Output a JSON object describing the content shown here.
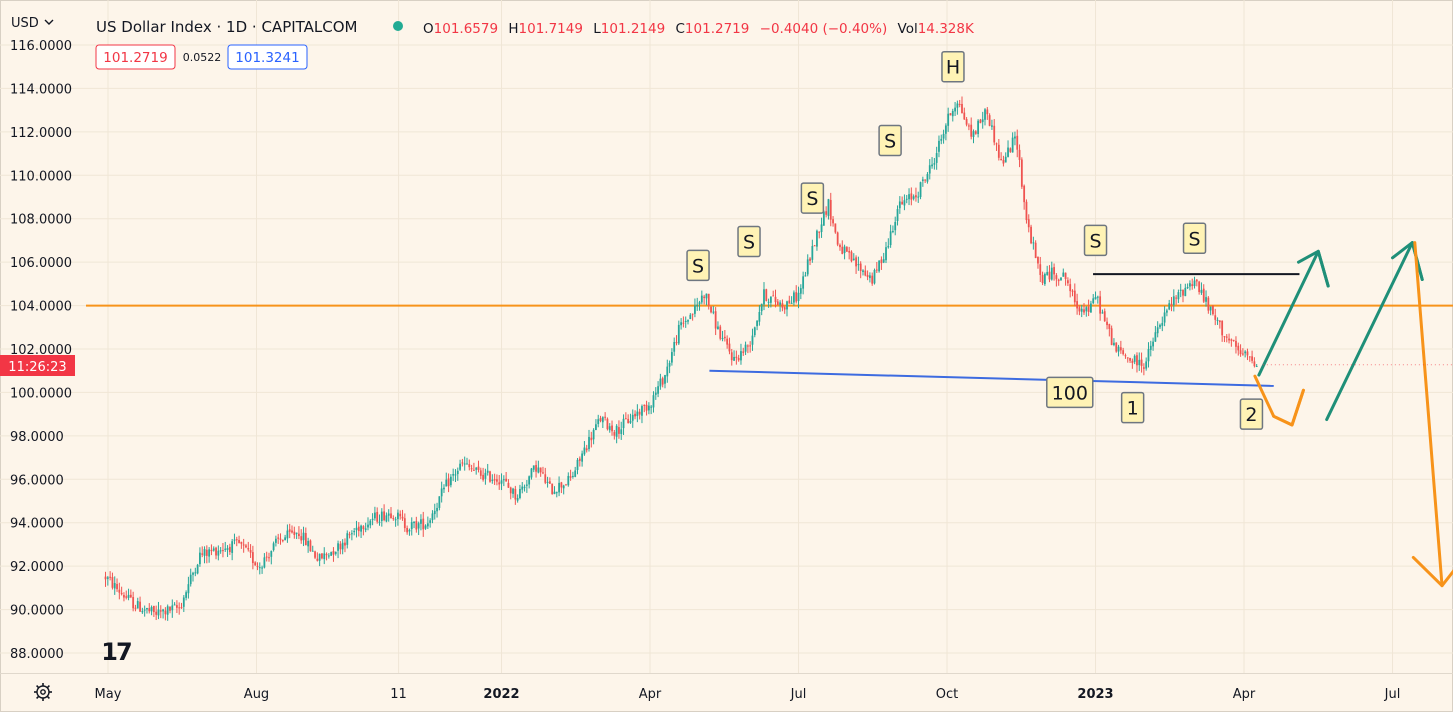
{
  "header": {
    "currency": "USD",
    "title": "US Dollar Index · 1D · CAPITALCOM",
    "o_label": "O",
    "open": "101.6579",
    "h_label": "H",
    "high": "101.7149",
    "l_label": "L",
    "low": "101.2149",
    "c_label": "C",
    "close": "101.2719",
    "change": "−0.4040 (−0.40%)",
    "vol_label": "Vol",
    "volume": "14.328K",
    "bid": "101.2719",
    "spread": "0.0522",
    "ask": "101.3241"
  },
  "price_badge": {
    "time": "11:26:23"
  },
  "logo_text": "17",
  "colors": {
    "background": "#fdf5ea",
    "up": "#26a69a",
    "down": "#ef5350",
    "resistance": "#f7931a",
    "neckline": "#3d6be0",
    "arrow_up": "#1f8f78",
    "arrow_down": "#f7931a",
    "label_fill": "#fff3b5",
    "badge": "#f23645"
  },
  "chart_data": {
    "type": "candlestick",
    "title": "US Dollar Index · 1D · CAPITALCOM",
    "xlabel": "",
    "ylabel": "USD",
    "ylim": [
      87.0,
      116.5
    ],
    "y_ticks": [
      "116.0000",
      "114.0000",
      "112.0000",
      "110.0000",
      "108.0000",
      "106.0000",
      "104.0000",
      "102.0000",
      "100.0000",
      "98.0000",
      "96.0000",
      "94.0000",
      "92.0000",
      "90.0000",
      "88.0000"
    ],
    "x_ticks": [
      {
        "label": "May",
        "t": 0.05
      },
      {
        "label": "Aug",
        "t": 3.05
      },
      {
        "label": "11",
        "t": 5.92
      },
      {
        "label": "2022",
        "t": 8.0
      },
      {
        "label": "Apr",
        "t": 11.0
      },
      {
        "label": "Jul",
        "t": 14.0
      },
      {
        "label": "Oct",
        "t": 17.0
      },
      {
        "label": "2023",
        "t": 20.0
      },
      {
        "label": "Apr",
        "t": 23.0
      },
      {
        "label": "Jul",
        "t": 26.0
      }
    ],
    "x_range_months": [
      -0.1,
      27.4
    ],
    "price_path": [
      [
        0.0,
        91.5
      ],
      [
        0.3,
        90.8
      ],
      [
        0.6,
        90.2
      ],
      [
        1.0,
        89.8
      ],
      [
        1.5,
        90.1
      ],
      [
        1.9,
        92.5
      ],
      [
        2.3,
        92.8
      ],
      [
        2.7,
        93.0
      ],
      [
        3.1,
        92.0
      ],
      [
        3.5,
        93.2
      ],
      [
        3.9,
        93.6
      ],
      [
        4.3,
        92.3
      ],
      [
        4.7,
        92.9
      ],
      [
        5.1,
        93.8
      ],
      [
        5.4,
        94.2
      ],
      [
        5.8,
        94.5
      ],
      [
        6.1,
        93.8
      ],
      [
        6.5,
        94.0
      ],
      [
        6.9,
        95.8
      ],
      [
        7.2,
        96.7
      ],
      [
        7.6,
        96.2
      ],
      [
        8.0,
        96.0
      ],
      [
        8.3,
        95.2
      ],
      [
        8.7,
        96.6
      ],
      [
        9.0,
        95.5
      ],
      [
        9.4,
        96.0
      ],
      [
        9.7,
        97.5
      ],
      [
        10.0,
        98.8
      ],
      [
        10.3,
        98.2
      ],
      [
        10.7,
        99.0
      ],
      [
        11.0,
        99.5
      ],
      [
        11.3,
        100.8
      ],
      [
        11.6,
        103.0
      ],
      [
        11.9,
        103.8
      ],
      [
        12.1,
        104.6
      ],
      [
        12.4,
        102.7
      ],
      [
        12.7,
        101.5
      ],
      [
        13.0,
        102.2
      ],
      [
        13.3,
        104.5
      ],
      [
        13.7,
        104.0
      ],
      [
        14.0,
        104.5
      ],
      [
        14.4,
        107.5
      ],
      [
        14.6,
        108.7
      ],
      [
        14.8,
        106.8
      ],
      [
        15.1,
        106.0
      ],
      [
        15.5,
        105.2
      ],
      [
        15.8,
        106.8
      ],
      [
        16.0,
        108.5
      ],
      [
        16.4,
        109.2
      ],
      [
        16.7,
        110.5
      ],
      [
        17.0,
        112.5
      ],
      [
        17.2,
        113.5
      ],
      [
        17.5,
        111.8
      ],
      [
        17.8,
        113.0
      ],
      [
        18.1,
        110.5
      ],
      [
        18.4,
        111.8
      ],
      [
        18.6,
        108.0
      ],
      [
        18.9,
        105.2
      ],
      [
        19.1,
        105.5
      ],
      [
        19.4,
        105.3
      ],
      [
        19.6,
        104.0
      ],
      [
        19.9,
        103.8
      ],
      [
        20.0,
        104.5
      ],
      [
        20.2,
        103.2
      ],
      [
        20.4,
        102.0
      ],
      [
        20.7,
        101.5
      ],
      [
        21.0,
        101.3
      ],
      [
        21.2,
        102.6
      ],
      [
        21.5,
        104.0
      ],
      [
        21.8,
        104.8
      ],
      [
        22.0,
        105.2
      ],
      [
        22.3,
        103.8
      ],
      [
        22.6,
        102.7
      ],
      [
        22.9,
        101.8
      ],
      [
        23.1,
        101.6
      ],
      [
        23.3,
        101.3
      ]
    ],
    "last_close": 101.2719,
    "horizontal_levels": [
      {
        "name": "resistance",
        "value": 104.0
      }
    ],
    "annotations": [
      {
        "text": "S",
        "t": 11.97,
        "y": 105.85
      },
      {
        "text": "S",
        "t": 13.0,
        "y": 106.95
      },
      {
        "text": "S",
        "t": 14.28,
        "y": 108.95
      },
      {
        "text": "S",
        "t": 15.85,
        "y": 111.6
      },
      {
        "text": "H",
        "t": 17.12,
        "y": 115.0
      },
      {
        "text": "S",
        "t": 20.0,
        "y": 107.0
      },
      {
        "text": "S",
        "t": 22.0,
        "y": 107.1
      },
      {
        "text": "100",
        "t": 19.48,
        "y": 100.0
      },
      {
        "text": "1",
        "t": 20.75,
        "y": 99.3
      },
      {
        "text": "2",
        "t": 23.15,
        "y": 99.0
      }
    ],
    "neckline": [
      [
        12.2,
        101.0
      ],
      [
        23.6,
        100.3
      ]
    ],
    "black_line": [
      [
        19.95,
        105.45
      ],
      [
        24.12,
        105.45
      ]
    ],
    "projection_arrows": [
      {
        "color": "up",
        "points": [
          [
            23.3,
            100.8
          ],
          [
            24.5,
            106.5
          ],
          [
            24.7,
            104.9
          ]
        ],
        "head": [
          [
            24.1,
            106.0
          ],
          [
            24.5,
            106.5
          ],
          [
            24.7,
            104.9
          ]
        ]
      },
      {
        "color": "up",
        "points": [
          [
            24.67,
            98.75
          ],
          [
            26.4,
            106.9
          ],
          [
            26.6,
            105.2
          ]
        ],
        "head": [
          [
            26.0,
            106.2
          ],
          [
            26.4,
            106.9
          ],
          [
            26.6,
            105.2
          ]
        ]
      },
      {
        "color": "down",
        "points": [
          [
            23.22,
            100.75
          ],
          [
            23.6,
            98.9
          ],
          [
            23.97,
            98.5
          ],
          [
            24.2,
            100.1
          ]
        ],
        "head": [
          [
            23.6,
            98.9
          ],
          [
            23.97,
            98.5
          ],
          [
            24.2,
            100.1
          ]
        ]
      },
      {
        "color": "down",
        "points": [
          [
            26.45,
            106.9
          ],
          [
            27.0,
            91.1
          ]
        ],
        "head": [
          [
            26.42,
            92.4
          ],
          [
            27.0,
            91.1
          ],
          [
            27.55,
            92.7
          ]
        ]
      }
    ]
  }
}
